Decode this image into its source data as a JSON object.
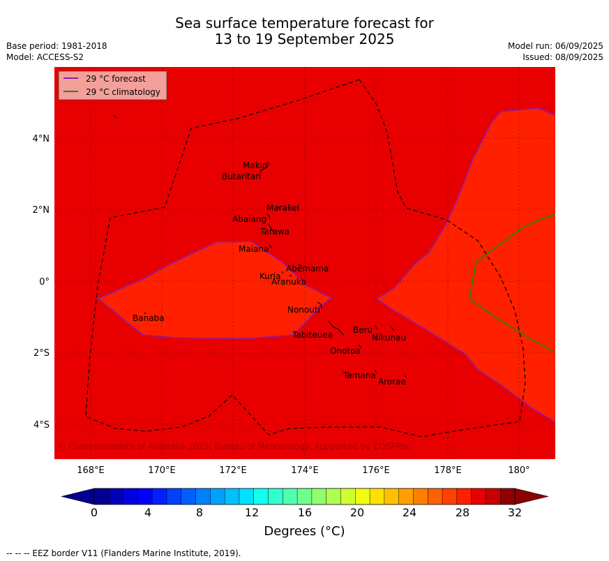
{
  "title_line1": "Sea surface temperature forecast for",
  "title_line2": "13 to 19 September 2025",
  "meta_left": [
    "Base period: 1981-2018",
    "Model: ACCESS-S2"
  ],
  "meta_right": [
    "Model run: 06/09/2025",
    "Issued: 08/09/2025"
  ],
  "legend": {
    "forecast": "29 °C  forecast",
    "climatology": "29 °C  climatology",
    "forecast_color": "#8b1fa8",
    "climatology_color": "#2e7d0f"
  },
  "lon_ticks": [
    "168°E",
    "170°E",
    "172°E",
    "174°E",
    "176°E",
    "178°E",
    "180°"
  ],
  "lat_ticks": [
    "4°N",
    "2°N",
    "0°",
    "2°S",
    "4°S"
  ],
  "islands": [
    "Makin",
    "Butaritari",
    "Marakei",
    "Abaiang",
    "Tarawa",
    "Maiana",
    "Abemama",
    "Kuria",
    "Aranuka",
    "Nonouti",
    "Banaba",
    "Beru",
    "Nikunau",
    "Tabiteuea",
    "Onotoa",
    "Tamana",
    "Arorae"
  ],
  "copyright": "© Commonwealth of Australia 2025, Bureau of Meteorology, supported by COSPPac",
  "colorbar": {
    "tick_labels": [
      "0",
      "4",
      "8",
      "12",
      "16",
      "20",
      "24",
      "28",
      "32"
    ],
    "title": "Degrees ($^\\circ$C)",
    "title_display": "Degrees (°C)",
    "colors": [
      "#000090",
      "#0000b8",
      "#0000e0",
      "#0000ff",
      "#0020ff",
      "#0040ff",
      "#0060ff",
      "#0080ff",
      "#00a0ff",
      "#00c0ff",
      "#00e0ff",
      "#10ffef",
      "#30ffcf",
      "#50ffaf",
      "#70ff8f",
      "#90ff6f",
      "#b0ff4f",
      "#d0ff2f",
      "#f0ff0f",
      "#ffe000",
      "#ffc000",
      "#ffa000",
      "#ff8000",
      "#ff6000",
      "#ff4000",
      "#ff2000",
      "#e80000",
      "#c80000",
      "#900000"
    ],
    "under_color": "#00008b",
    "over_color": "#8b0000"
  },
  "footnote": "-- --  -- EEZ border V11 (Flanders Marine Institute, 2019).",
  "field_colors": {
    "background": "#e80000",
    "warm": "#ff2000"
  }
}
